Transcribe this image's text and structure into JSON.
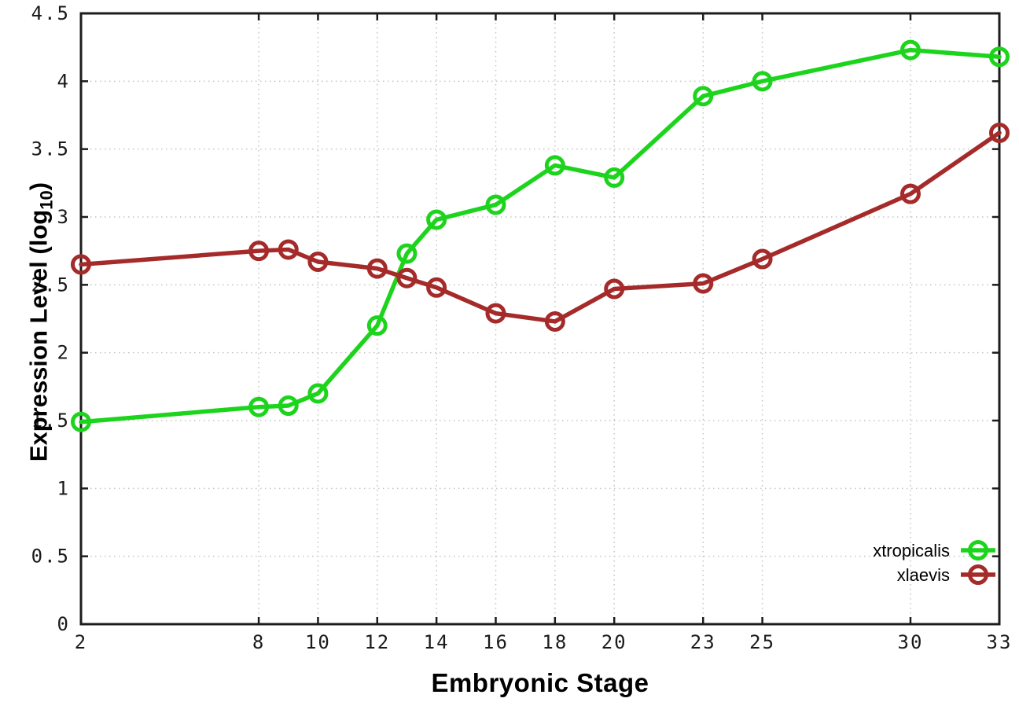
{
  "chart_data": {
    "type": "line",
    "title": "",
    "xlabel": "Embryonic Stage",
    "ylabel": "Expression Level (log10)",
    "ylabel_prefix": "Expression Level (log",
    "ylabel_subscript": "10",
    "ylabel_suffix": ")",
    "xlim": [
      2,
      33
    ],
    "ylim": [
      0,
      4.5
    ],
    "x_ticks": [
      2,
      8,
      10,
      12,
      14,
      16,
      18,
      20,
      23,
      25,
      30,
      33
    ],
    "y_ticks": [
      "0",
      "0.5",
      "1",
      "1.5",
      "2",
      "2.5",
      "3",
      "3.5",
      "4",
      "4.5"
    ],
    "grid": true,
    "legend_position": "inside-right",
    "axis_color": "#1c1c1c",
    "grid_color": "#c4c4c4",
    "background_color": "#ffffff",
    "x": [
      2,
      8,
      9,
      10,
      12,
      13,
      14,
      16,
      18,
      20,
      23,
      25,
      30,
      33
    ],
    "series": [
      {
        "name": "xtropicalis",
        "color": "#1dd41d",
        "values": [
          1.49,
          1.6,
          1.61,
          1.7,
          2.2,
          2.73,
          2.98,
          3.09,
          3.38,
          3.29,
          3.89,
          4.0,
          4.23,
          4.18
        ]
      },
      {
        "name": "xlaevis",
        "color": "#a52a2a",
        "values": [
          2.65,
          2.75,
          2.76,
          2.67,
          2.62,
          2.55,
          2.48,
          2.29,
          2.23,
          2.47,
          2.51,
          2.69,
          3.17,
          3.62
        ]
      }
    ]
  }
}
